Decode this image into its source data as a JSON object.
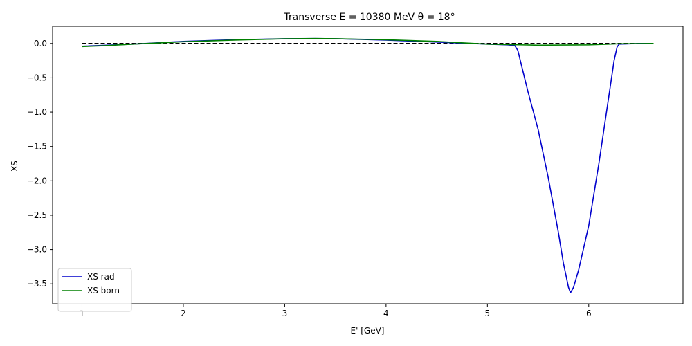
{
  "chart_data": {
    "type": "line",
    "title": "Transverse E = 10380 MeV θ = 18°",
    "xlabel": "E' [GeV]",
    "ylabel": "XS",
    "xlim": [
      0.71,
      6.93
    ],
    "ylim": [
      -3.79,
      0.25
    ],
    "xticks": [
      1,
      2,
      3,
      4,
      5,
      6
    ],
    "yticks": [
      0.0,
      -0.5,
      -1.0,
      -1.5,
      -2.0,
      -2.5,
      -3.0,
      -3.5
    ],
    "ytick_labels": [
      "0.0",
      "−0.5",
      "−1.0",
      "−1.5",
      "−2.0",
      "−2.5",
      "−3.0",
      "−3.5"
    ],
    "grid": false,
    "legend_position": "lower-left",
    "series": [
      {
        "name": "XS rad",
        "color": "#0000cc",
        "style": "solid",
        "x": [
          1.0,
          1.5,
          2.0,
          2.5,
          3.0,
          3.3,
          3.5,
          4.0,
          4.5,
          5.0,
          5.2,
          5.27,
          5.3,
          5.35,
          5.4,
          5.5,
          5.6,
          5.7,
          5.75,
          5.8,
          5.82,
          5.85,
          5.9,
          6.0,
          6.1,
          6.2,
          6.25,
          6.28,
          6.3,
          6.4,
          6.5,
          6.64
        ],
        "y": [
          -0.04,
          -0.01,
          0.03,
          0.055,
          0.07,
          0.072,
          0.07,
          0.05,
          0.02,
          -0.01,
          -0.02,
          -0.03,
          -0.1,
          -0.4,
          -0.7,
          -1.25,
          -1.95,
          -2.75,
          -3.2,
          -3.55,
          -3.63,
          -3.55,
          -3.3,
          -2.65,
          -1.75,
          -0.75,
          -0.25,
          -0.05,
          -0.01,
          -0.005,
          0.0,
          0.0
        ]
      },
      {
        "name": "XS born",
        "color": "#008000",
        "style": "solid",
        "x": [
          1.0,
          1.25,
          1.5,
          2.0,
          2.5,
          3.0,
          3.3,
          3.5,
          4.0,
          4.5,
          5.0,
          5.5,
          6.0,
          6.3,
          6.64
        ],
        "y": [
          -0.045,
          -0.03,
          -0.01,
          0.025,
          0.05,
          0.068,
          0.072,
          0.07,
          0.055,
          0.03,
          -0.01,
          -0.025,
          -0.02,
          -0.005,
          0.0
        ]
      },
      {
        "name": "",
        "color": "#000000",
        "style": "dashed",
        "x": [
          1.0,
          6.64
        ],
        "y": [
          0.0,
          0.0
        ]
      }
    ]
  }
}
